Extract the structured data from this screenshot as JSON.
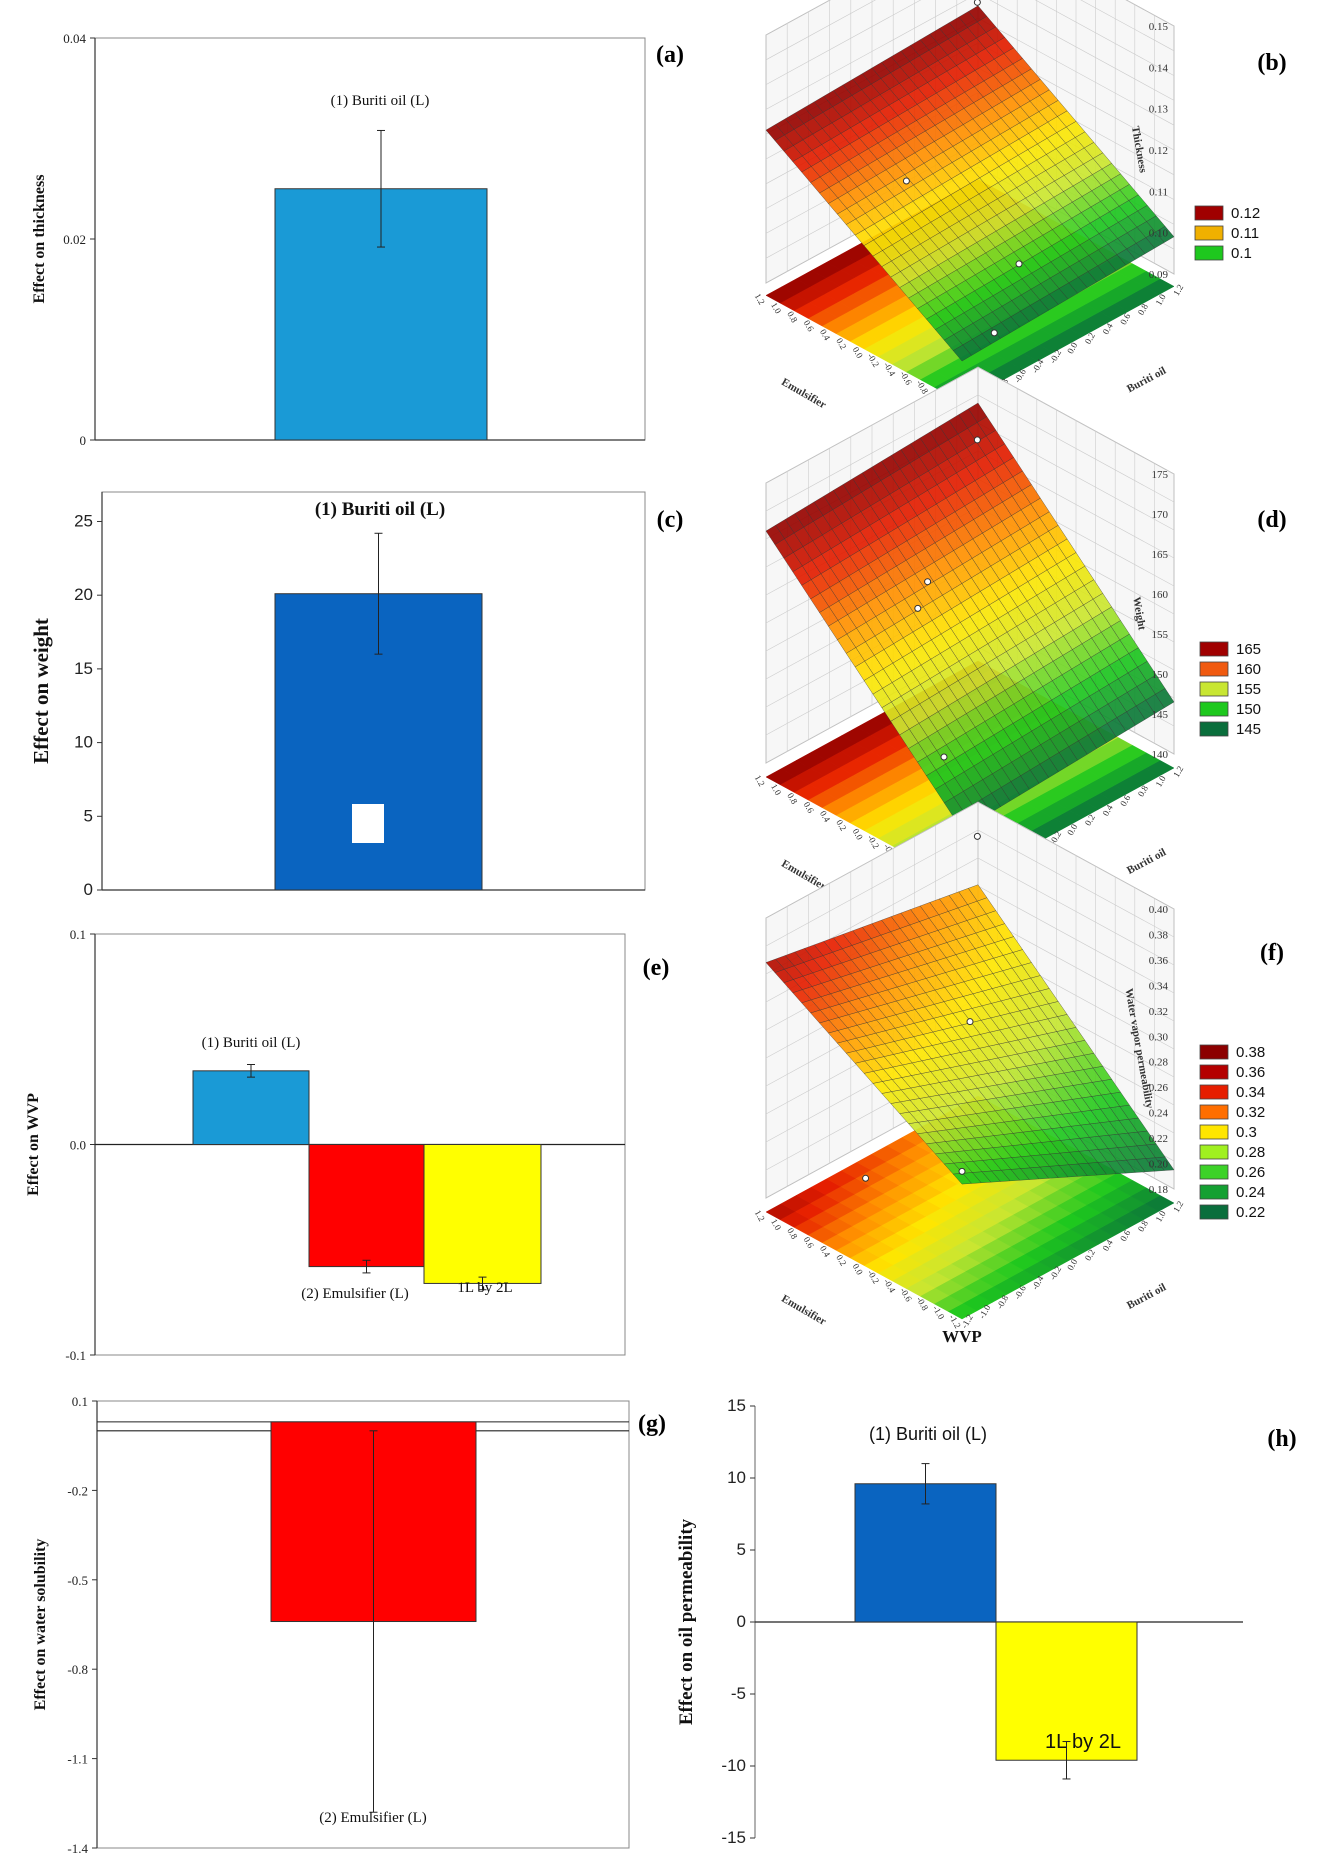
{
  "bar_panels": [
    {
      "id": "a",
      "panel_label": "(a)",
      "ylabel": "Effect on thickness",
      "yticks": [
        "0",
        "0.02",
        "0.04"
      ],
      "ylim": [
        0,
        0.04
      ],
      "bars": [
        {
          "label": "(1) Buriti  oil  (L)",
          "value": 0.025,
          "err": 0.0058,
          "color": "#1a9ad6"
        }
      ]
    },
    {
      "id": "c",
      "panel_label": "(c)",
      "ylabel": "Effect on weight",
      "yticks": [
        "0",
        "5",
        "10",
        "15",
        "20",
        "25"
      ],
      "ylim": [
        0,
        27
      ],
      "bars": [
        {
          "label": "(1) Buriti  oil (L)",
          "value": 20.1,
          "err": 4.1,
          "color": "#0a64c0"
        }
      ]
    },
    {
      "id": "e",
      "panel_label": "(e)",
      "ylabel": "Effect on WVP",
      "yticks": [
        "-0.1",
        "0.0",
        "0.1"
      ],
      "ylim": [
        -0.1,
        0.1
      ],
      "bars": [
        {
          "label": "(1) Buriti  oil  (L)",
          "value": 0.035,
          "err": 0.003,
          "color": "#1a9ad6"
        },
        {
          "label": "(2) Emulsifier  (L)",
          "value": -0.058,
          "err": 0.003,
          "color": "#ff0000"
        },
        {
          "label": "1L by 2L",
          "value": -0.066,
          "err": 0.003,
          "color": "#ffff00"
        }
      ]
    },
    {
      "id": "g",
      "panel_label": "(g)",
      "ylabel": "Effect on water solubility",
      "yticks": [
        "-1.4",
        "-1.1",
        "-0.8",
        "-0.5",
        "-0.2",
        "0.1"
      ],
      "ylim": [
        -1.4,
        0.1
      ],
      "bars": [
        {
          "label": "(2) Emulsifier  (L)",
          "value": -0.64,
          "err": 0.64,
          "color": "#ff0000"
        }
      ]
    },
    {
      "id": "h",
      "panel_label": "(h)",
      "ylabel": "Effect on oil permeability",
      "yticks": [
        "-15",
        "-10",
        "-5",
        "0",
        "5",
        "10",
        "15"
      ],
      "ylim": [
        -15,
        15
      ],
      "bars": [
        {
          "label": "(1) Buriti  oil  (L)",
          "value": 9.6,
          "err": 1.4,
          "color": "#0a64c0"
        },
        {
          "label": "1L by 2L",
          "value": -9.6,
          "err": 1.3,
          "color": "#ffff00"
        }
      ]
    }
  ],
  "surface_panels": [
    {
      "id": "b",
      "panel_label": "(b)",
      "title": "Thickness",
      "zlabel": "Thickness",
      "xlabel": "Emulsifier",
      "ylabel": "Buriti oil",
      "zticks": [
        "0.09",
        "0.10",
        "0.11",
        "0.12",
        "0.13",
        "0.14",
        "0.15"
      ],
      "xticks": [
        "1.2",
        "1.0",
        "0.8",
        "0.6",
        "0.4",
        "0.2",
        "0.0",
        "-0.2",
        "-0.4",
        "-0.6",
        "-0.8",
        "-1.0",
        "-1.2"
      ],
      "yticks": [
        "-1.2",
        "-1.0",
        "-0.8",
        "-0.6",
        "-0.4",
        "-0.2",
        "0.0",
        "0.2",
        "0.4",
        "0.6",
        "0.8",
        "1.0",
        "1.2"
      ],
      "legend": [
        {
          "label": "0.12",
          "color": "#a00000"
        },
        {
          "label": "0.11",
          "color": "#f0b000"
        },
        {
          "label": "0.1",
          "color": "#1ec81e"
        }
      ]
    },
    {
      "id": "d",
      "panel_label": "(d)",
      "title": "Weight",
      "zlabel": "Weight",
      "xlabel": "Emulsifier",
      "ylabel": "Buriti oil",
      "zticks": [
        "140",
        "145",
        "150",
        "155",
        "160",
        "165",
        "170",
        "175"
      ],
      "xticks": [
        "1.2",
        "1.0",
        "0.8",
        "0.6",
        "0.4",
        "0.2",
        "0.0",
        "-0.2",
        "-0.4",
        "-0.6",
        "-0.8",
        "-1.0",
        "-1.2"
      ],
      "yticks": [
        "-1.2",
        "-1.0",
        "-0.8",
        "-0.6",
        "-0.4",
        "-0.2",
        "0.0",
        "0.2",
        "0.4",
        "0.6",
        "0.8",
        "1.0",
        "1.2"
      ],
      "legend": [
        {
          "label": "165",
          "color": "#a00000"
        },
        {
          "label": "160",
          "color": "#f05a10"
        },
        {
          "label": "155",
          "color": "#c8e632"
        },
        {
          "label": "150",
          "color": "#1ec81e"
        },
        {
          "label": "145",
          "color": "#0a6e3c"
        }
      ]
    },
    {
      "id": "f",
      "panel_label": "(f)",
      "title": "WVP",
      "zlabel": "Water vapor permeability",
      "xlabel": "Emulsifier",
      "ylabel": "Buriti oil",
      "zticks": [
        "0.18",
        "0.20",
        "0.22",
        "0.24",
        "0.26",
        "0.28",
        "0.30",
        "0.32",
        "0.34",
        "0.36",
        "0.38",
        "0.40"
      ],
      "xticks": [
        "1.2",
        "1.0",
        "0.8",
        "0.6",
        "0.4",
        "0.2",
        "0.0",
        "-0.2",
        "-0.4",
        "-0.6",
        "-0.8",
        "-1.0",
        "-1.2"
      ],
      "yticks": [
        "-1.2",
        "-1.0",
        "-0.8",
        "-0.6",
        "-0.4",
        "-0.2",
        "0.0",
        "0.2",
        "0.4",
        "0.6",
        "0.8",
        "1.0",
        "1.2"
      ],
      "legend": [
        {
          "label": "0.38",
          "color": "#8c0000"
        },
        {
          "label": "0.36",
          "color": "#b40000"
        },
        {
          "label": "0.34",
          "color": "#e61e00"
        },
        {
          "label": "0.32",
          "color": "#ff6e00"
        },
        {
          "label": "0.3",
          "color": "#ffe600"
        },
        {
          "label": "0.28",
          "color": "#a0f020"
        },
        {
          "label": "0.26",
          "color": "#3cd228"
        },
        {
          "label": "0.24",
          "color": "#14a032"
        },
        {
          "label": "0.22",
          "color": "#0a6e3c"
        }
      ]
    }
  ],
  "chart_data": [
    {
      "type": "bar",
      "panel": "(a)",
      "ylabel": "Effect on thickness",
      "categories": [
        "(1) Buriti  oil  (L)"
      ],
      "values": [
        0.025
      ],
      "errors": [
        0.0058
      ],
      "ylim": [
        0,
        0.04
      ]
    },
    {
      "type": "bar",
      "panel": "(c)",
      "ylabel": "Effect on weight",
      "categories": [
        "(1) Buriti  oil (L)"
      ],
      "values": [
        20.1
      ],
      "errors": [
        4.1
      ],
      "ylim": [
        0,
        27
      ]
    },
    {
      "type": "bar",
      "panel": "(e)",
      "ylabel": "Effect on WVP",
      "categories": [
        "(1) Buriti  oil  (L)",
        "(2) Emulsifier  (L)",
        "1L by 2L"
      ],
      "values": [
        0.035,
        -0.058,
        -0.066
      ],
      "errors": [
        0.003,
        0.003,
        0.003
      ],
      "ylim": [
        -0.1,
        0.1
      ]
    },
    {
      "type": "bar",
      "panel": "(g)",
      "ylabel": "Effect on water solubility",
      "categories": [
        "(2) Emulsifier  (L)"
      ],
      "values": [
        -0.64
      ],
      "errors": [
        0.64
      ],
      "ylim": [
        -1.4,
        0.1
      ]
    },
    {
      "type": "bar",
      "panel": "(h)",
      "ylabel": "Effect on oil permeability",
      "categories": [
        "(1) Buriti  oil  (L)",
        "1L by 2L"
      ],
      "values": [
        9.6,
        -9.6
      ],
      "errors": [
        1.4,
        1.3
      ],
      "ylim": [
        -15,
        15
      ]
    },
    {
      "type": "surface",
      "panel": "(b)",
      "title": "Thickness",
      "x": "Emulsifier",
      "y": "Buriti oil",
      "zlim": [
        0.09,
        0.15
      ]
    },
    {
      "type": "surface",
      "panel": "(d)",
      "title": "Weight",
      "x": "Emulsifier",
      "y": "Buriti oil",
      "zlim": [
        140,
        175
      ]
    },
    {
      "type": "surface",
      "panel": "(f)",
      "title": "WVP",
      "x": "Emulsifier",
      "y": "Buriti oil",
      "zlim": [
        0.18,
        0.4
      ]
    }
  ]
}
